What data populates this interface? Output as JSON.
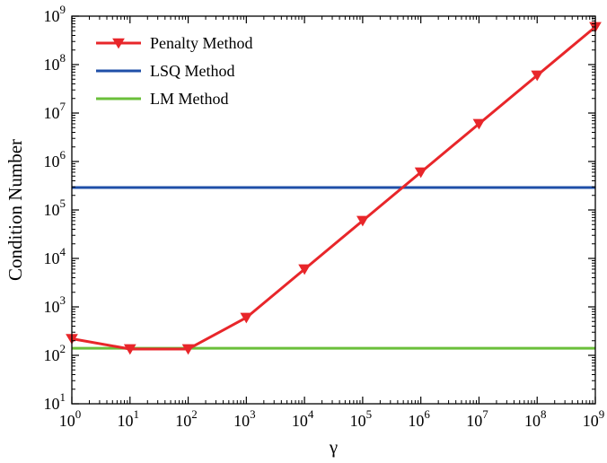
{
  "chart_data": {
    "type": "line",
    "xlabel": "γ",
    "ylabel": "Condition Number",
    "xscale": "log",
    "yscale": "log",
    "xlim": [
      1,
      1000000000
    ],
    "ylim": [
      10,
      1000000000
    ],
    "x_tick_exponents": [
      "0",
      "1",
      "2",
      "3",
      "4",
      "5",
      "6",
      "7",
      "8",
      "9"
    ],
    "y_tick_exponents": [
      "1",
      "2",
      "3",
      "4",
      "5",
      "6",
      "7",
      "8",
      "9"
    ],
    "tick_base": "10",
    "grid": false,
    "legend_position": "top-left",
    "series": [
      {
        "name": "Penalty Method",
        "color": "#e8262a",
        "marker": "triangle-down",
        "x": [
          1,
          10,
          100,
          1000,
          10000,
          100000,
          1000000,
          10000000,
          100000000,
          1000000000
        ],
        "values": [
          220,
          135,
          135,
          600,
          6000,
          60000,
          600000,
          6000000,
          60000000,
          600000000
        ]
      },
      {
        "name": "LSQ Method",
        "color": "#1f4fa8",
        "marker": "none",
        "x": [
          1,
          1000000000
        ],
        "values": [
          290000,
          290000
        ]
      },
      {
        "name": "LM Method",
        "color": "#6abf3a",
        "marker": "none",
        "x": [
          1,
          1000000000
        ],
        "values": [
          140,
          140
        ]
      }
    ]
  }
}
